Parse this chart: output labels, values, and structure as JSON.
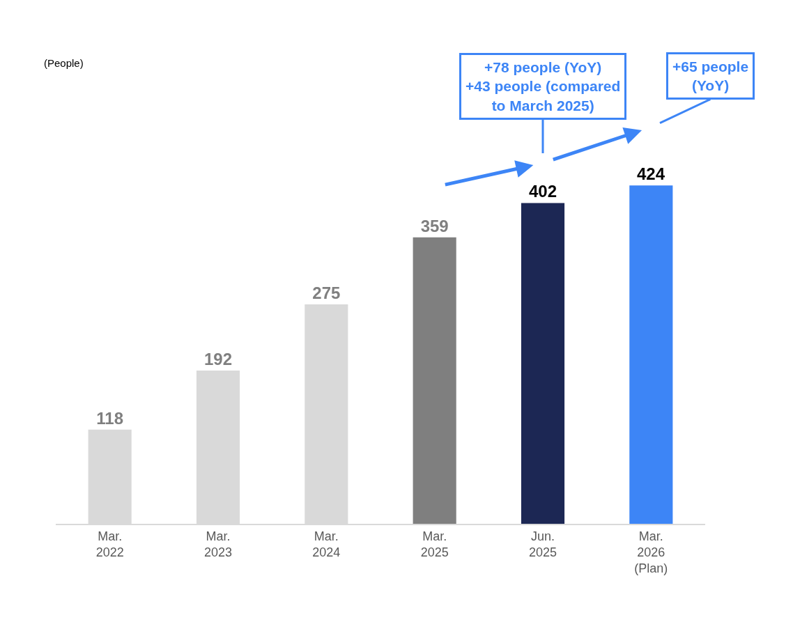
{
  "chart_data": {
    "type": "bar",
    "categories": [
      "Mar.\n2022",
      "Mar.\n2023",
      "Mar.\n2024",
      "Mar.\n2025",
      "Jun.\n2025",
      "Mar.\n2026\n(Plan)"
    ],
    "values": [
      118,
      192,
      275,
      359,
      402,
      424
    ],
    "colors": [
      "#d9d9d9",
      "#d9d9d9",
      "#d9d9d9",
      "#7f7f7f",
      "#1c2754",
      "#3d85f6"
    ],
    "data_labels": true,
    "annotations": [
      "(People)",
      "+78 people (YoY)\n+43 people (compared\nto March 2025)",
      "+65 people\n(YoY)"
    ]
  }
}
